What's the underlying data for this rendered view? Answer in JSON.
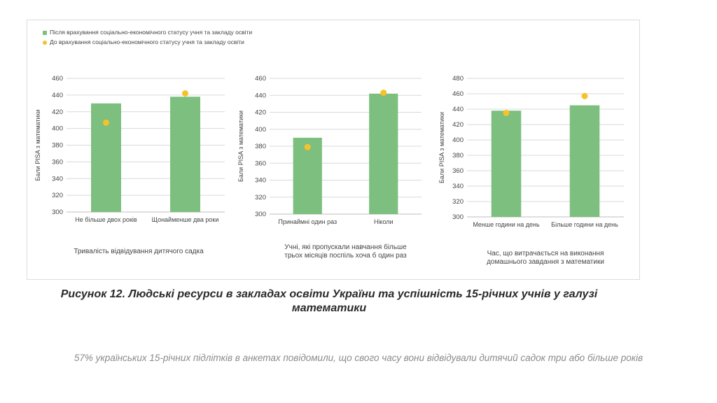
{
  "colors": {
    "bar": "#7cbf7f",
    "dot": "#f5c22a",
    "grid": "#d9d9d9",
    "axis": "#bfbfbf"
  },
  "legend": {
    "after_label": "Після врахування соціально-економічного статусу учня та закладу освіти",
    "before_label": "До врахування соціально-економічного статусу учня та закладу освіти"
  },
  "chart_data": [
    {
      "type": "bar",
      "ylabel": "Бали PISA з математики",
      "xlabel": "Тривалість відвідування дитячого садка",
      "ylim": [
        300,
        460
      ],
      "yticks": [
        300,
        320,
        340,
        360,
        380,
        400,
        420,
        440,
        460
      ],
      "categories": [
        "Не більше двох років",
        "Щонайменше два роки"
      ],
      "series": [
        {
          "name": "Після врахування соціально-економічного статусу учня та закладу освіти",
          "kind": "bar",
          "values": [
            430,
            438
          ]
        },
        {
          "name": "До врахування соціально-економічного статусу учня та закладу освіти",
          "kind": "dot",
          "values": [
            407,
            442
          ]
        }
      ],
      "grid": true
    },
    {
      "type": "bar",
      "ylabel": "Бали PISA з математики",
      "xlabel": "Учні, які пропускали навчання більше трьох місяців поспіль хоча б один раз",
      "ylim": [
        300,
        460
      ],
      "yticks": [
        300,
        320,
        340,
        360,
        380,
        400,
        420,
        440,
        460
      ],
      "categories": [
        "Принаймні один раз",
        "Ніколи"
      ],
      "series": [
        {
          "name": "Після врахування соціально-економічного статусу учня та закладу освіти",
          "kind": "bar",
          "values": [
            390,
            442
          ]
        },
        {
          "name": "До врахування соціально-економічного статусу учня та закладу освіти",
          "kind": "dot",
          "values": [
            379,
            443
          ]
        }
      ],
      "grid": true
    },
    {
      "type": "bar",
      "ylabel": "Бали PISA з математики",
      "xlabel": "Час, що витрачається на виконання домашнього завдання з математики",
      "ylim": [
        300,
        480
      ],
      "yticks": [
        300,
        320,
        340,
        360,
        380,
        400,
        420,
        440,
        460,
        480
      ],
      "categories": [
        "Менше години на день",
        "Більше години на день"
      ],
      "series": [
        {
          "name": "Після врахування соціально-економічного статусу учня та закладу освіти",
          "kind": "bar",
          "values": [
            438,
            445
          ]
        },
        {
          "name": "До врахування соціально-економічного статусу учня та закладу освіти",
          "kind": "dot",
          "values": [
            435,
            457
          ]
        }
      ],
      "grid": true
    }
  ],
  "caption": "Рисунок 12. Людські ресурси в закладах освіти України та успішність 15-річних учнів у галузі математики",
  "subtext": "57% українських 15-річних підлітків в анкетах повідомили, що свого часу вони відвідували дитячий садок три або більше років"
}
